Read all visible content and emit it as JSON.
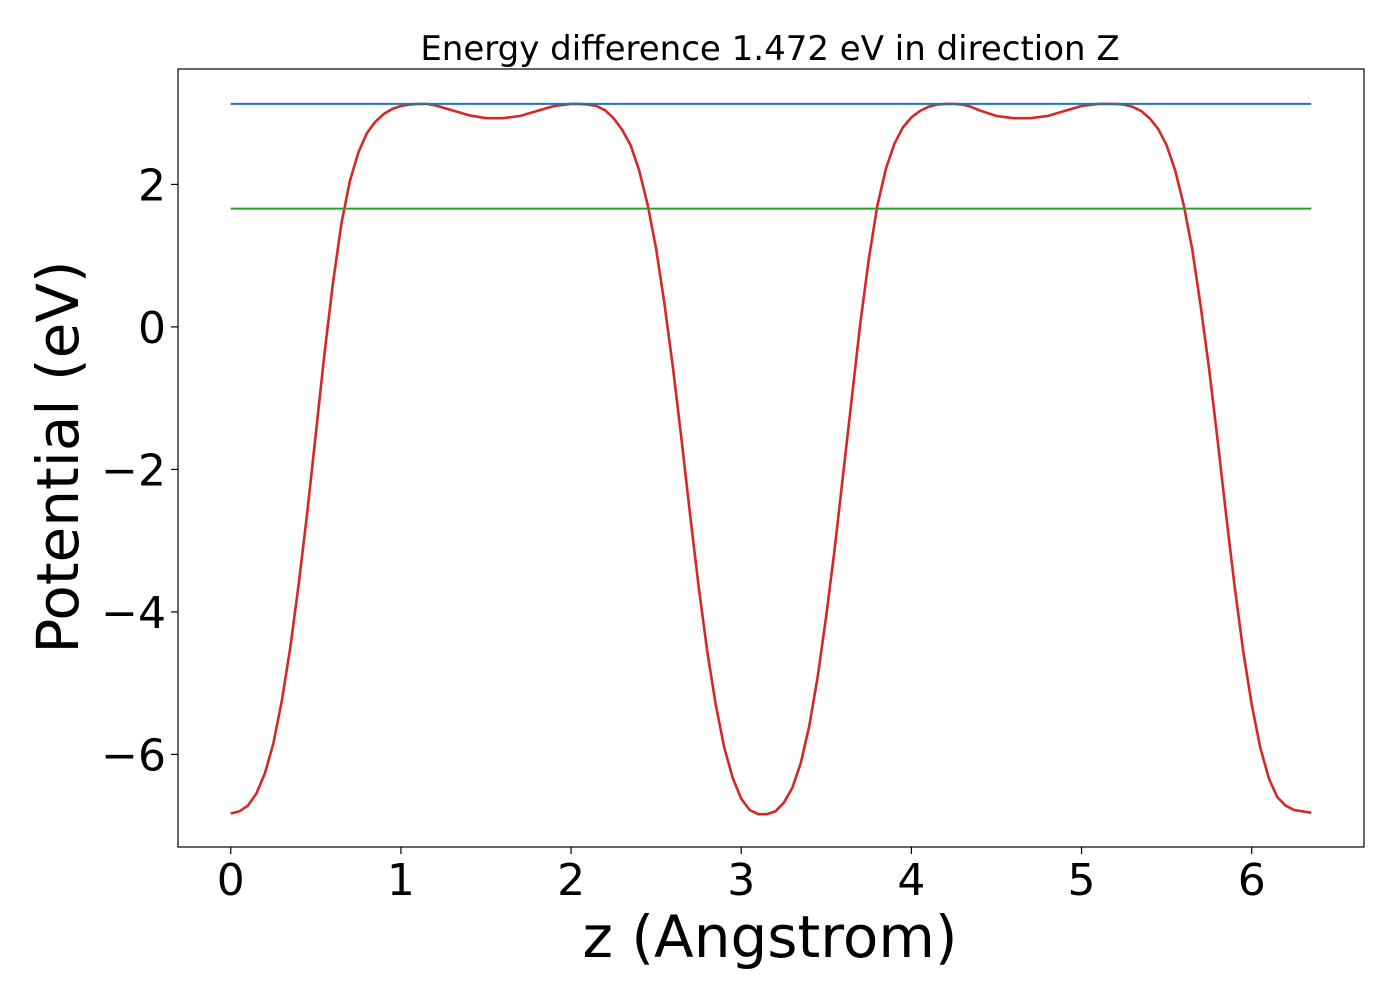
{
  "chart_data": {
    "type": "line",
    "title": "Energy difference 1.472 eV in direction Z",
    "xlabel": "z (Angstrom)",
    "ylabel": "Potential (eV)",
    "xlim": [
      -0.31,
      6.66
    ],
    "ylim": [
      -7.3,
      3.62
    ],
    "xticks": [
      0,
      1,
      2,
      3,
      4,
      5,
      6
    ],
    "yticks": [
      -6,
      -4,
      -2,
      0,
      2
    ],
    "xtick_labels": [
      "0",
      "1",
      "2",
      "3",
      "4",
      "5",
      "6"
    ],
    "ytick_labels": [
      "−6",
      "−4",
      "−2",
      "0",
      "2"
    ],
    "grid": false,
    "series": [
      {
        "color": "#d62728",
        "x": [
          0.0,
          0.05,
          0.1,
          0.15,
          0.2,
          0.25,
          0.3,
          0.35,
          0.4,
          0.45,
          0.5,
          0.55,
          0.6,
          0.65,
          0.7,
          0.75,
          0.8,
          0.85,
          0.9,
          0.95,
          1.0,
          1.05,
          1.1,
          1.15,
          1.2,
          1.3,
          1.4,
          1.5,
          1.6,
          1.7,
          1.8,
          1.9,
          2.0,
          2.05,
          2.1,
          2.15,
          2.2,
          2.25,
          2.3,
          2.35,
          2.4,
          2.45,
          2.5,
          2.55,
          2.6,
          2.65,
          2.7,
          2.75,
          2.8,
          2.85,
          2.9,
          2.95,
          3.0,
          3.05,
          3.1,
          3.15,
          3.2,
          3.25,
          3.3,
          3.35,
          3.4,
          3.45,
          3.5,
          3.55,
          3.6,
          3.65,
          3.7,
          3.75,
          3.8,
          3.85,
          3.9,
          3.95,
          4.0,
          4.05,
          4.1,
          4.15,
          4.2,
          4.25,
          4.3,
          4.35,
          4.4,
          4.5,
          4.6,
          4.7,
          4.8,
          4.9,
          5.0,
          5.1,
          5.2,
          5.25,
          5.3,
          5.35,
          5.4,
          5.45,
          5.5,
          5.55,
          5.6,
          5.65,
          5.7,
          5.75,
          5.8,
          5.85,
          5.9,
          5.95,
          6.0,
          6.05,
          6.1,
          6.15,
          6.2,
          6.25,
          6.3,
          6.35
        ],
        "y": [
          -6.83,
          -6.8,
          -6.72,
          -6.55,
          -6.27,
          -5.85,
          -5.25,
          -4.5,
          -3.6,
          -2.6,
          -1.5,
          -0.4,
          0.6,
          1.45,
          2.05,
          2.45,
          2.72,
          2.88,
          2.99,
          3.06,
          3.1,
          3.12,
          3.13,
          3.13,
          3.11,
          3.04,
          2.97,
          2.93,
          2.93,
          2.96,
          3.03,
          3.1,
          3.13,
          3.13,
          3.12,
          3.1,
          3.04,
          2.93,
          2.77,
          2.55,
          2.2,
          1.72,
          1.1,
          0.3,
          -0.6,
          -1.6,
          -2.65,
          -3.65,
          -4.55,
          -5.3,
          -5.9,
          -6.33,
          -6.62,
          -6.78,
          -6.84,
          -6.84,
          -6.8,
          -6.68,
          -6.47,
          -6.12,
          -5.6,
          -4.9,
          -4.05,
          -3.1,
          -2.05,
          -1.0,
          0.05,
          0.95,
          1.7,
          2.22,
          2.57,
          2.8,
          2.94,
          3.03,
          3.09,
          3.12,
          3.13,
          3.13,
          3.12,
          3.09,
          3.04,
          2.96,
          2.93,
          2.93,
          2.96,
          3.03,
          3.1,
          3.13,
          3.13,
          3.12,
          3.09,
          3.03,
          2.93,
          2.78,
          2.55,
          2.2,
          1.72,
          1.1,
          0.3,
          -0.6,
          -1.6,
          -2.65,
          -3.65,
          -4.55,
          -5.3,
          -5.9,
          -6.33,
          -6.6,
          -6.72,
          -6.78,
          -6.8,
          -6.82
        ]
      },
      {
        "color": "#1f77b4",
        "x": [
          0.0,
          6.35
        ],
        "y": [
          3.13,
          3.13
        ]
      },
      {
        "color": "#2ca02c",
        "x": [
          0.0,
          6.35
        ],
        "y": [
          1.66,
          1.66
        ]
      }
    ]
  }
}
